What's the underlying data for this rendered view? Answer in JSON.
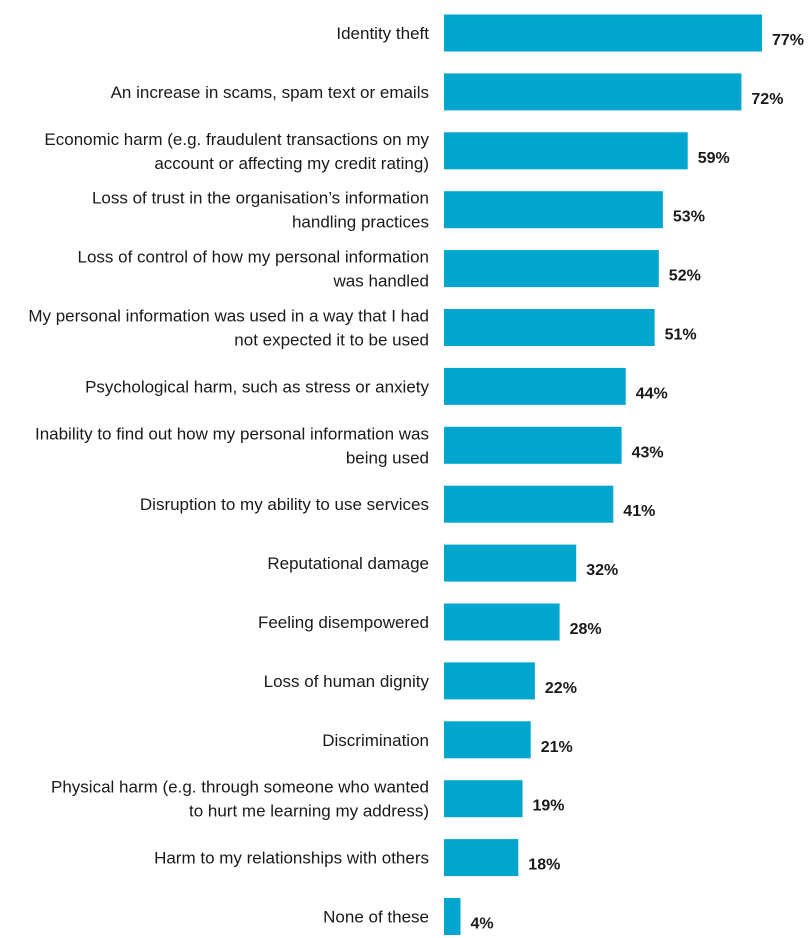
{
  "chart_data": {
    "type": "bar",
    "orientation": "horizontal",
    "title": "",
    "xlabel": "",
    "ylabel": "",
    "xlim": [
      0,
      100
    ],
    "value_suffix": "%",
    "grid": false,
    "bar_color": "#00A6CE",
    "categories": [
      [
        "Identity theft"
      ],
      [
        "An increase in scams, spam text or emails"
      ],
      [
        "Economic harm (e.g. fraudulent transactions on my",
        "account or affecting my credit rating)"
      ],
      [
        "Loss of trust in the organisation’s information",
        "handling practices"
      ],
      [
        "Loss of control of how my personal information",
        "was handled"
      ],
      [
        "My personal information was used in a way that I had",
        "not expected it to be used"
      ],
      [
        "Psychological harm, such as stress or anxiety"
      ],
      [
        "Inability to find out how my personal information was",
        "being used"
      ],
      [
        "Disruption to my ability to use services"
      ],
      [
        "Reputational damage"
      ],
      [
        "Feeling disempowered"
      ],
      [
        "Loss of human dignity"
      ],
      [
        "Discrimination"
      ],
      [
        "Physical harm (e.g. through someone who wanted",
        "to hurt me learning my address)"
      ],
      [
        "Harm to my relationships with others"
      ],
      [
        "None of these"
      ]
    ],
    "values": [
      77,
      72,
      59,
      53,
      52,
      51,
      44,
      43,
      41,
      32,
      28,
      22,
      21,
      19,
      18,
      4
    ],
    "value_labels": [
      "77%",
      "72%",
      "59%",
      "53%",
      "52%",
      "51%",
      "44%",
      "43%",
      "41%",
      "32%",
      "28%",
      "22%",
      "21%",
      "19%",
      "18%",
      "4%"
    ]
  }
}
